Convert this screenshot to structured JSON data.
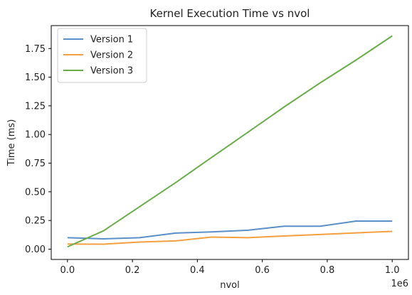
{
  "chart_data": {
    "type": "line",
    "title": "Kernel Execution Time vs nvol",
    "xlabel": "nvol",
    "ylabel": "Time (ms)",
    "x_offset_label": "1e6",
    "xlim": [
      -0.05,
      1.05
    ],
    "ylim": [
      -0.09,
      1.95
    ],
    "xticks": [
      0.0,
      0.2,
      0.4,
      0.6,
      0.8,
      1.0
    ],
    "xtick_labels": [
      "0.0",
      "0.2",
      "0.4",
      "0.6",
      "0.8",
      "1.0"
    ],
    "yticks": [
      0.0,
      0.25,
      0.5,
      0.75,
      1.0,
      1.25,
      1.5,
      1.75
    ],
    "ytick_labels": [
      "0.00",
      "0.25",
      "0.50",
      "0.75",
      "1.00",
      "1.25",
      "1.50",
      "1.75"
    ],
    "grid": false,
    "legend_position": "top-left",
    "x": [
      0.0,
      0.111,
      0.222,
      0.333,
      0.444,
      0.556,
      0.667,
      0.778,
      0.889,
      1.0
    ],
    "series": [
      {
        "name": "Version 1",
        "color": "#5b8fc7",
        "values": [
          0.1,
          0.09,
          0.1,
          0.14,
          0.15,
          0.165,
          0.2,
          0.2,
          0.245,
          0.245
        ]
      },
      {
        "name": "Version 2",
        "color": "#f4a040",
        "values": [
          0.045,
          0.043,
          0.062,
          0.072,
          0.105,
          0.1,
          0.115,
          0.128,
          0.142,
          0.155
        ]
      },
      {
        "name": "Version 3",
        "color": "#6aad4a",
        "values": [
          0.02,
          0.16,
          0.37,
          0.58,
          0.8,
          1.02,
          1.24,
          1.45,
          1.65,
          1.86
        ]
      }
    ]
  }
}
